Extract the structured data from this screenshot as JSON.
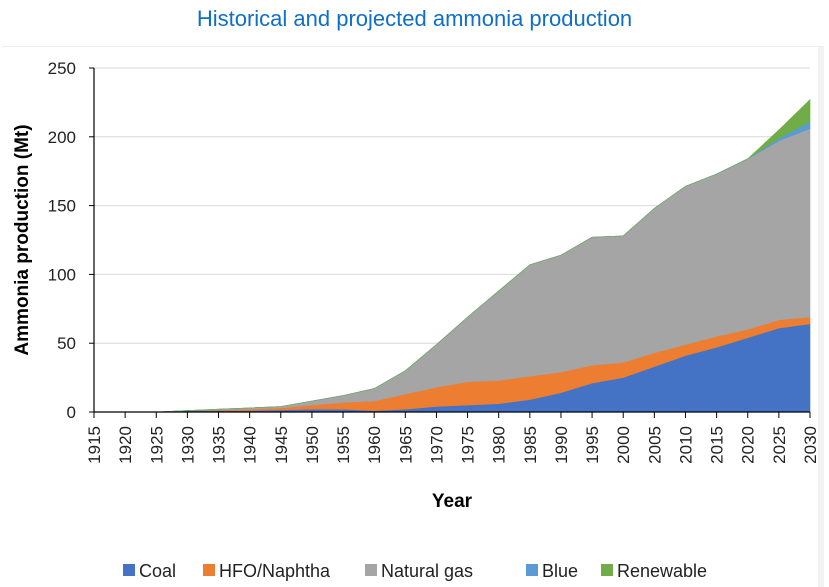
{
  "chart_data": {
    "type": "area",
    "stacked": true,
    "title": "Historical and projected ammonia production",
    "xlabel": "Year",
    "ylabel": "Ammonia production (Mt)",
    "ylim": [
      0,
      250
    ],
    "yticks": [
      "0",
      "50",
      "100",
      "150",
      "200",
      "250"
    ],
    "xlim": [
      1915,
      2030
    ],
    "x": [
      "1915",
      "1920",
      "1925",
      "1930",
      "1935",
      "1940",
      "1945",
      "1950",
      "1955",
      "1960",
      "1965",
      "1970",
      "1975",
      "1980",
      "1985",
      "1990",
      "1995",
      "2000",
      "2005",
      "2010",
      "2015",
      "2020",
      "2025",
      "2030"
    ],
    "grid": "horizontal",
    "legend_position": "bottom",
    "series": [
      {
        "name": "Coal",
        "color": "#4472c4",
        "values": [
          0,
          0,
          0,
          1,
          1,
          1,
          1.5,
          2,
          2,
          1,
          2,
          4,
          5,
          6,
          9,
          14,
          21,
          25,
          33,
          41,
          47,
          54,
          61,
          64
        ]
      },
      {
        "name": "HFO/Naphtha",
        "color": "#ed7d31",
        "values": [
          0,
          0,
          0,
          0,
          0.5,
          1,
          1.5,
          3,
          5,
          7,
          11,
          14,
          17,
          17,
          17,
          15,
          13,
          11,
          10,
          8,
          8,
          6,
          6,
          5
        ]
      },
      {
        "name": "Natural gas",
        "color": "#a5a5a5",
        "values": [
          0,
          0,
          0,
          0,
          0.5,
          1,
          1,
          3,
          5,
          9,
          17,
          31,
          47,
          65,
          81,
          85,
          93,
          92,
          105,
          115,
          118,
          124,
          130,
          137
        ]
      },
      {
        "name": "Blue",
        "color": "#5b9bd5",
        "values": [
          0,
          0,
          0,
          0,
          0,
          0,
          0,
          0,
          0,
          0,
          0,
          0,
          0,
          0,
          0,
          0,
          0,
          0,
          0,
          0,
          0,
          0,
          2,
          5
        ]
      },
      {
        "name": "Renewable",
        "color": "#70ad47",
        "values": [
          0,
          0,
          0,
          0,
          0,
          0,
          0,
          0,
          0,
          0,
          0,
          0,
          0,
          0,
          0,
          0,
          0,
          0,
          0,
          0,
          0,
          0,
          6,
          16
        ]
      }
    ]
  }
}
